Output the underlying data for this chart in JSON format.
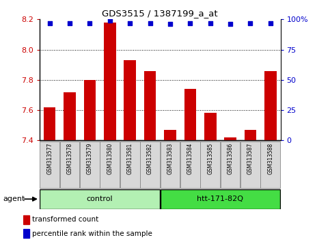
{
  "title": "GDS3515 / 1387199_a_at",
  "samples": [
    "GSM313577",
    "GSM313578",
    "GSM313579",
    "GSM313580",
    "GSM313581",
    "GSM313582",
    "GSM313583",
    "GSM313584",
    "GSM313585",
    "GSM313586",
    "GSM313587",
    "GSM313588"
  ],
  "transformed_count": [
    7.62,
    7.72,
    7.8,
    8.18,
    7.93,
    7.86,
    7.47,
    7.74,
    7.58,
    7.42,
    7.47,
    7.86
  ],
  "percentile_rank": [
    97,
    97,
    97,
    99,
    97,
    97,
    96,
    97,
    97,
    96,
    97,
    97
  ],
  "ylim": [
    7.4,
    8.2
  ],
  "yticks": [
    7.4,
    7.6,
    7.8,
    8.0,
    8.2
  ],
  "bar_color": "#cc0000",
  "dot_color": "#0000cc",
  "control_label": "control",
  "htt_label": "htt-171-82Q",
  "agent_label": "agent",
  "legend_bar_label": "transformed count",
  "legend_dot_label": "percentile rank within the sample",
  "tick_color": "#cc0000",
  "right_tick_color": "#0000cc",
  "box_facecolor_light": "#b3f0b3",
  "box_facecolor_dark": "#44dd44",
  "box_edgecolor": "#000000",
  "sample_box_facecolor": "#d8d8d8",
  "sample_box_edgecolor": "#888888"
}
